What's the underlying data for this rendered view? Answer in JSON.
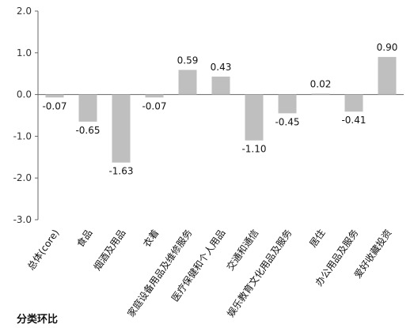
{
  "chart_data": {
    "type": "bar",
    "title": "分类环比",
    "xlabel": "",
    "ylabel": "",
    "ylim": [
      -3.0,
      2.0
    ],
    "yticks": [
      "2.0",
      "1.0",
      "0.0",
      "-1.0",
      "-2.0",
      "-3.0"
    ],
    "grid": false,
    "legend": "none",
    "bar_color": "#bfbfbf",
    "categories": [
      "总体(core)",
      "食品",
      "烟酒及用品",
      "衣着",
      "家庭设备用品及维修服务",
      "医疗保健和个人用品",
      "交通和通信",
      "娱乐教育文化用品及服务",
      "居住",
      "办公用品及服务",
      "爱好收藏投资"
    ],
    "values": [
      -0.07,
      -0.65,
      -1.63,
      -0.07,
      0.59,
      0.43,
      -1.1,
      -0.45,
      0.02,
      -0.41,
      0.9
    ],
    "value_labels": [
      "-0.07",
      "-0.65",
      "-1.63",
      "-0.07",
      "0.59",
      "0.43",
      "-1.10",
      "-0.45",
      "0.02",
      "-0.41",
      "0.90"
    ]
  }
}
